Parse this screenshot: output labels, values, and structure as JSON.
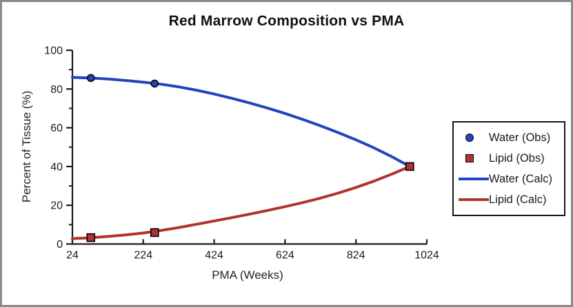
{
  "figure": {
    "title": "Red Marrow Composition vs PMA",
    "xlabel": "PMA (Weeks)",
    "ylabel": "Percent of Tissue (%)"
  },
  "chart_data": {
    "type": "line",
    "title": "Red Marrow Composition vs PMA",
    "xlabel": "PMA (Weeks)",
    "ylabel": "Percent of Tissue (%)",
    "xlim": [
      24,
      1024
    ],
    "ylim": [
      0,
      100
    ],
    "x_major_ticks": [
      24,
      224,
      424,
      624,
      824,
      1024
    ],
    "y_major_ticks": [
      0,
      20,
      40,
      60,
      80,
      100
    ],
    "y_minor_ticks": [
      10,
      30,
      50,
      70,
      90
    ],
    "grid": false,
    "legend_position": "outside-right",
    "colors": {
      "water": "#2444BE",
      "lipid": "#B03331",
      "marker_edge": "#000000",
      "axis": "#1A1A1A"
    },
    "series": [
      {
        "name": "Water (Obs)",
        "type": "scatter",
        "marker": "circle",
        "color": "#2444BE",
        "points": [
          [
            76,
            85.7
          ],
          [
            256,
            82.8
          ]
        ]
      },
      {
        "name": "Lipid (Obs)",
        "type": "scatter",
        "marker": "square",
        "color": "#B03331",
        "points": [
          [
            76,
            3.3
          ],
          [
            256,
            5.9
          ],
          [
            976,
            40
          ]
        ]
      },
      {
        "name": "Water (Calc)",
        "type": "line",
        "color": "#2444BE",
        "points": [
          [
            24,
            86
          ],
          [
            74,
            85.7
          ],
          [
            124,
            85.2
          ],
          [
            174,
            84.4
          ],
          [
            224,
            83.5
          ],
          [
            274,
            82.5
          ],
          [
            324,
            81.1
          ],
          [
            374,
            79.4
          ],
          [
            424,
            77.4
          ],
          [
            474,
            75.2
          ],
          [
            524,
            72.8
          ],
          [
            574,
            70.2
          ],
          [
            624,
            67.4
          ],
          [
            674,
            64.3
          ],
          [
            724,
            61.0
          ],
          [
            774,
            57.5
          ],
          [
            824,
            53.8
          ],
          [
            874,
            49.7
          ],
          [
            924,
            45.2
          ],
          [
            976,
            40
          ]
        ]
      },
      {
        "name": "Lipid (Calc)",
        "type": "line",
        "color": "#B03331",
        "points": [
          [
            24,
            2.8
          ],
          [
            74,
            3.2
          ],
          [
            124,
            3.9
          ],
          [
            174,
            4.7
          ],
          [
            224,
            5.7
          ],
          [
            274,
            7.0
          ],
          [
            324,
            8.5
          ],
          [
            374,
            10.2
          ],
          [
            424,
            11.9
          ],
          [
            474,
            13.6
          ],
          [
            524,
            15.4
          ],
          [
            574,
            17.3
          ],
          [
            624,
            19.3
          ],
          [
            674,
            21.4
          ],
          [
            724,
            23.7
          ],
          [
            774,
            26.3
          ],
          [
            824,
            29.2
          ],
          [
            874,
            32.4
          ],
          [
            924,
            36.0
          ],
          [
            976,
            40
          ]
        ]
      }
    ],
    "legend": [
      {
        "label": "Water (Obs)",
        "swatch": "circle",
        "color": "#2444BE"
      },
      {
        "label": "Lipid (Obs)",
        "swatch": "square",
        "color": "#B03331"
      },
      {
        "label": "Water (Calc)",
        "swatch": "line",
        "color": "#2444BE"
      },
      {
        "label": "Lipid (Calc)",
        "swatch": "line",
        "color": "#B03331"
      }
    ]
  }
}
